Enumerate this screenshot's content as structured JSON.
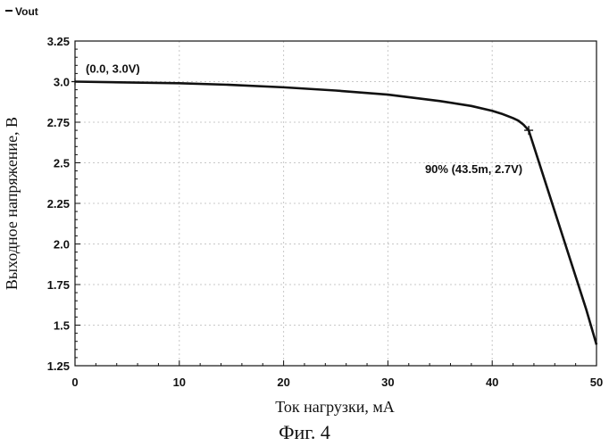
{
  "chart_data": {
    "type": "line",
    "xlabel": "Ток нагрузки, мА",
    "ylabel": "Выходное напряжение, В",
    "xlim": [
      0,
      50
    ],
    "ylim": [
      1.25,
      3.25
    ],
    "xticks": [
      "0",
      "10",
      "20",
      "30",
      "40",
      "50"
    ],
    "yticks": [
      "1.25",
      "1.5",
      "1.75",
      "2.0",
      "2.25",
      "2.5",
      "2.75",
      "3.0",
      "3.25"
    ],
    "grid": true,
    "legend_position": "top-left",
    "series": [
      {
        "name": "Vout",
        "color": "#111111",
        "x": [
          0,
          5,
          10,
          15,
          20,
          25,
          30,
          35,
          38,
          40,
          41,
          42,
          42.5,
          43,
          43.5,
          45,
          47,
          49,
          50
        ],
        "y": [
          3.0,
          2.995,
          2.99,
          2.98,
          2.965,
          2.945,
          2.92,
          2.88,
          2.85,
          2.82,
          2.8,
          2.775,
          2.76,
          2.735,
          2.7,
          2.4,
          2.0,
          1.6,
          1.38
        ]
      }
    ],
    "annotations": [
      {
        "text": "(0.0, 3.0V)",
        "x": 0,
        "y": 3.0
      },
      {
        "text": "90% (43.5m, 2.7V)",
        "x": 43.5,
        "y": 2.7
      }
    ],
    "caption": "Фиг. 4"
  }
}
